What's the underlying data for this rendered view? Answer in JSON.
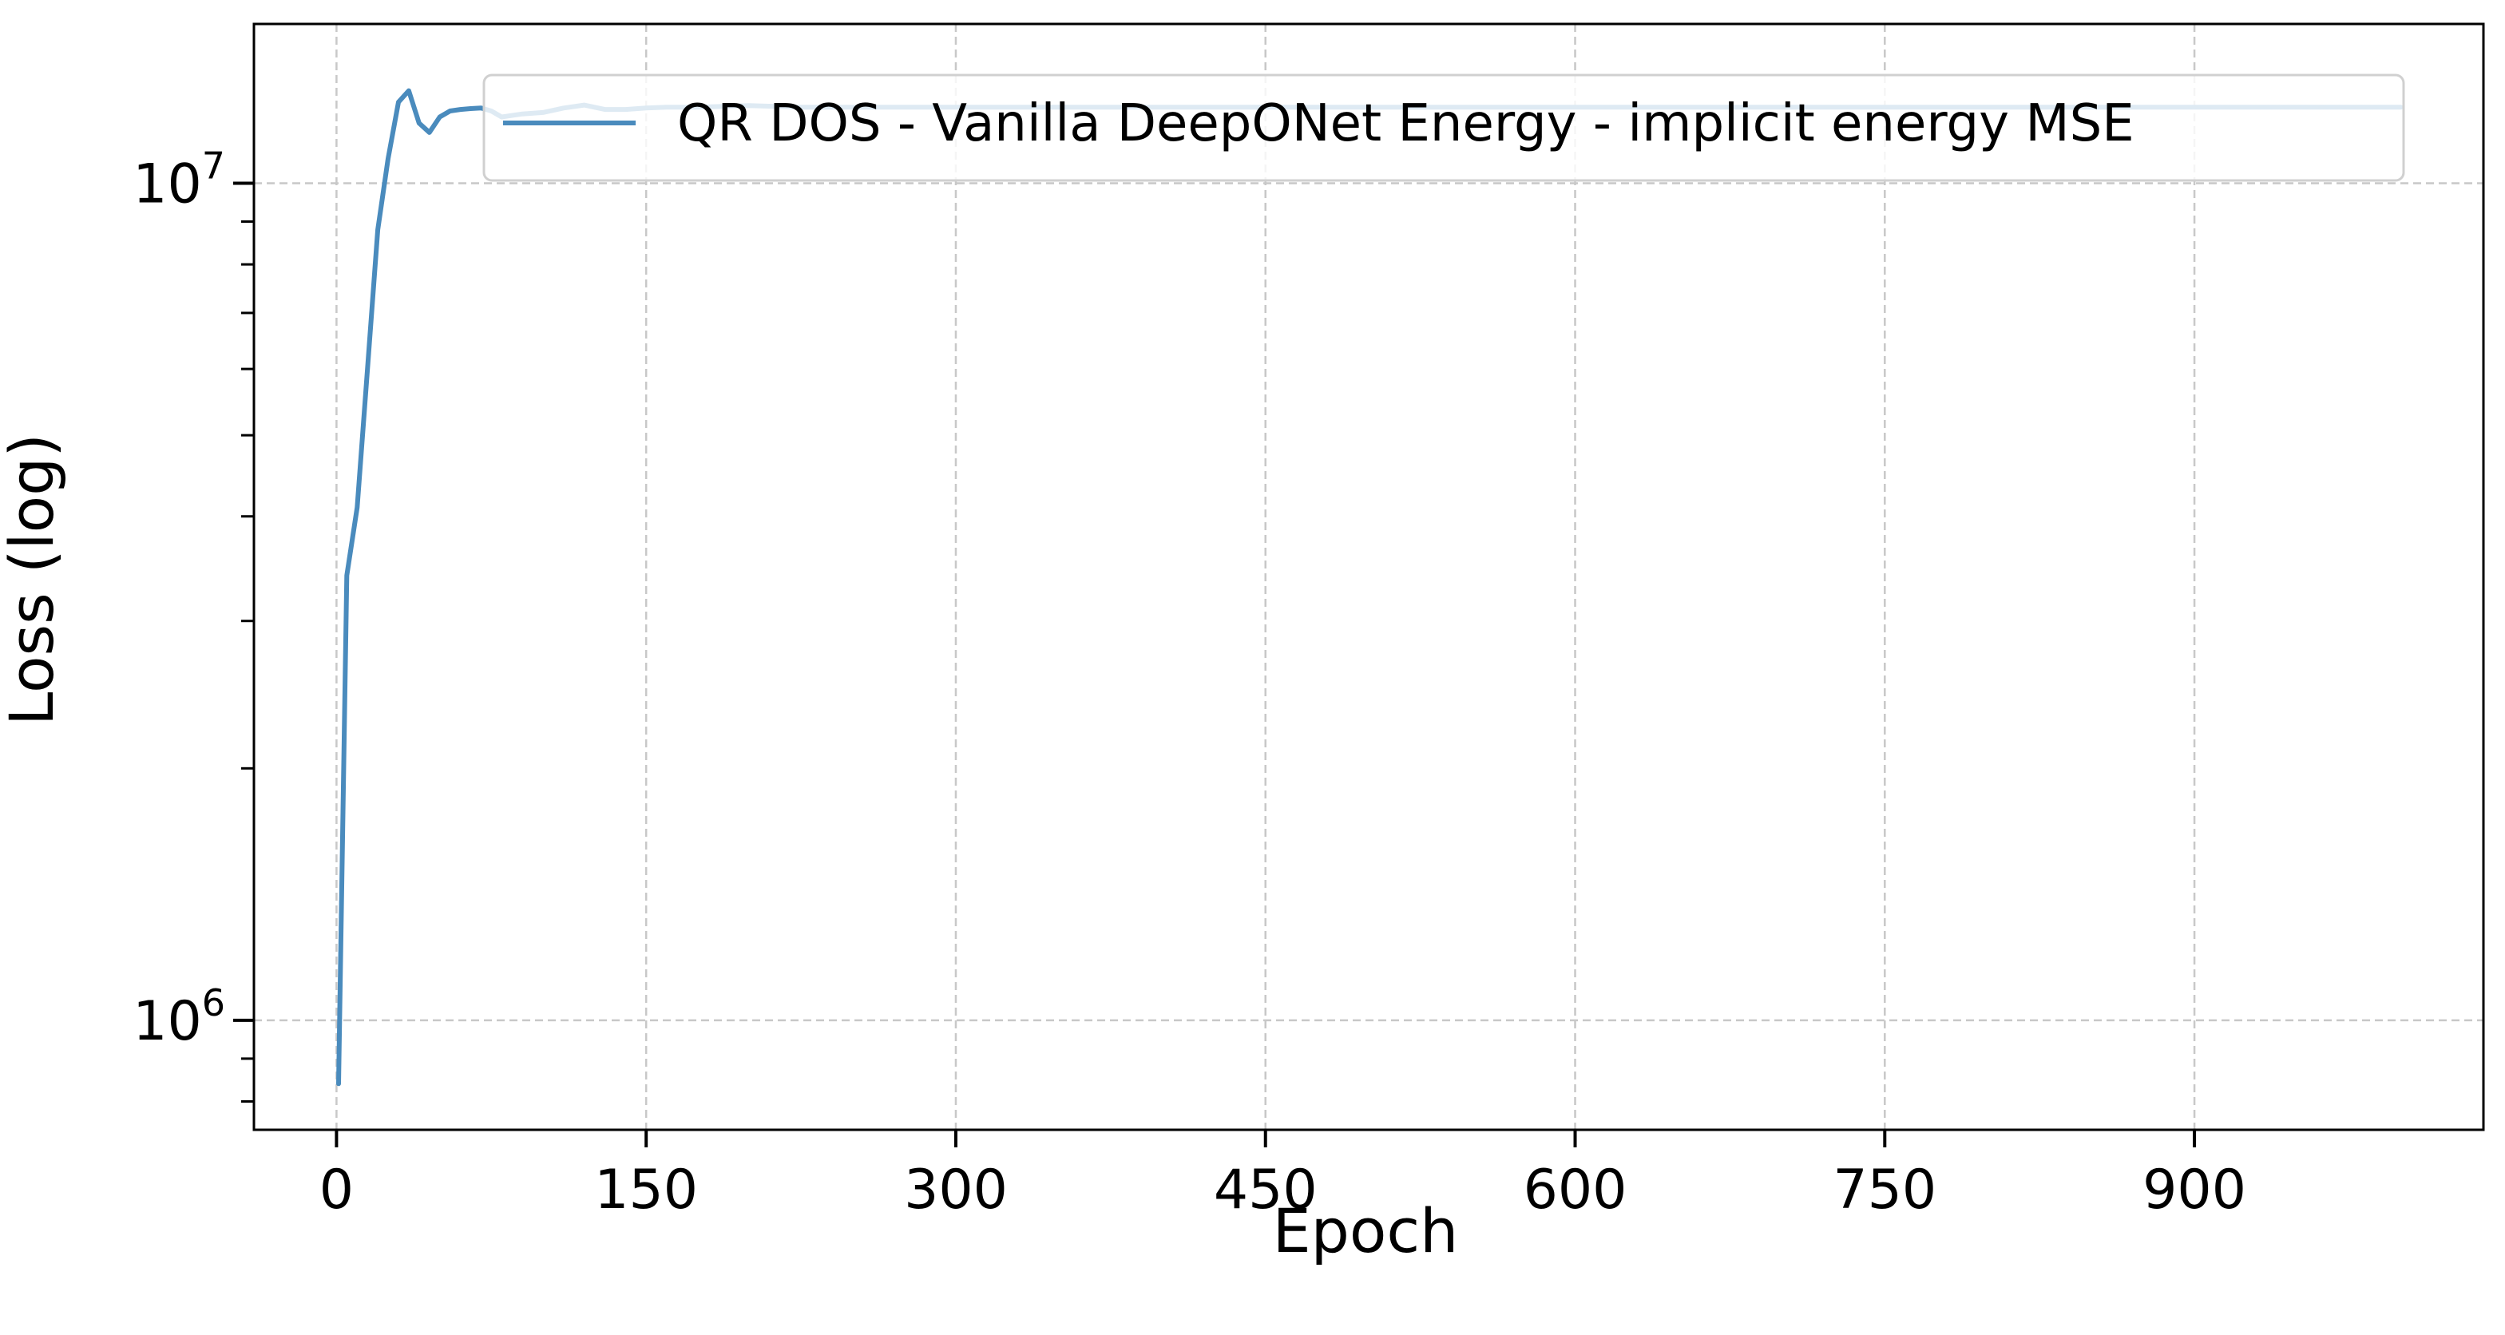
{
  "chart_data": {
    "type": "line",
    "title": "",
    "xlabel": "Epoch",
    "ylabel": "Loss (log)",
    "yscale": "log",
    "xlim": [
      -40,
      1040
    ],
    "ylim": [
      740000,
      15500000
    ],
    "x_ticks": [
      0,
      150,
      300,
      450,
      600,
      750,
      900
    ],
    "x_tick_labels": [
      "0",
      "150",
      "300",
      "450",
      "600",
      "750",
      "900"
    ],
    "y_major_ticks": [
      1000000,
      10000000
    ],
    "y_tick_labels": [
      {
        "base": "10",
        "exponent": "6"
      },
      {
        "base": "10",
        "exponent": "7"
      }
    ],
    "y_minor_ticks": [
      800000,
      900000,
      2000000,
      3000000,
      4000000,
      5000000,
      6000000,
      7000000,
      8000000,
      9000000
    ],
    "grid": true,
    "legend_position": "top-right",
    "series": [
      {
        "name": "QR DOS - Vanilla DeepONet Energy - implicit energy MSE",
        "color": "#4a8bbd",
        "x": [
          1,
          5,
          10,
          15,
          20,
          25,
          30,
          35,
          40,
          45,
          50,
          55,
          60,
          65,
          70,
          75,
          80,
          90,
          100,
          110,
          120,
          130,
          140,
          150,
          160,
          175,
          200,
          225,
          250,
          300,
          350,
          400,
          450,
          500,
          550,
          600,
          650,
          700,
          750,
          800,
          850,
          900,
          950,
          1000
        ],
        "y": [
          840000,
          3400000,
          4100000,
          6000000,
          8800000,
          10700000,
          12500000,
          12900000,
          11800000,
          11500000,
          12000000,
          12200000,
          12250000,
          12280000,
          12300000,
          12200000,
          12000000,
          12100000,
          12150000,
          12300000,
          12400000,
          12250000,
          12250000,
          12300000,
          12330000,
          12330000,
          12380000,
          12330000,
          12330000,
          12330000,
          12330000,
          12330000,
          12330000,
          12330000,
          12330000,
          12330000,
          12330000,
          12330000,
          12330000,
          12330000,
          12330000,
          12330000,
          12330000,
          12330000
        ]
      }
    ]
  },
  "colors": {
    "line": "#4a8bbd",
    "grid": "#c8c8c8",
    "axes": "#000000",
    "legend_border": "#d0d0d0"
  }
}
